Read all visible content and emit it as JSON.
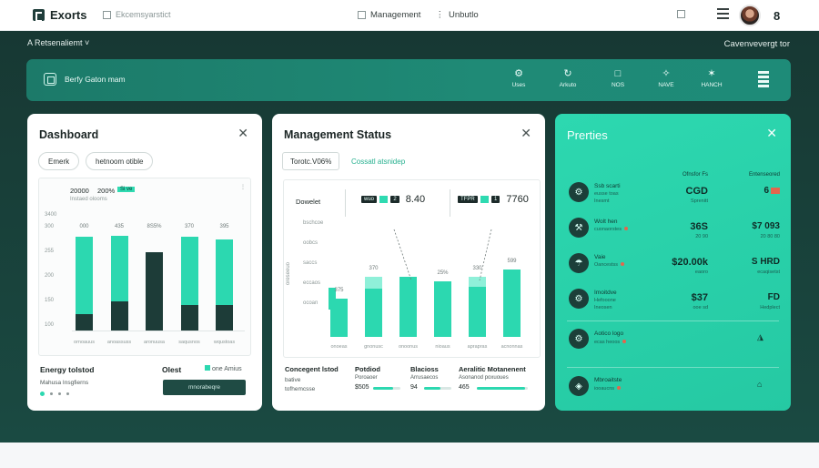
{
  "topbar": {
    "brand": "Exorts",
    "search": "Ekcemsyarstict",
    "nav": [
      "Management",
      "Unbutlo"
    ],
    "count": "8"
  },
  "crumb": {
    "left": "A Retsenaliemt",
    "right": "Cavenvevergt tor"
  },
  "header_bar": {
    "label": "Berfy Gaton mam",
    "items": [
      {
        "icon": "⚙",
        "label": "Uses"
      },
      {
        "icon": "↻",
        "label": "Arkuto"
      },
      {
        "icon": "□",
        "label": "NOS"
      },
      {
        "icon": "✧",
        "label": "NAVE"
      },
      {
        "icon": "✶",
        "label": "HANCH"
      }
    ]
  },
  "dashboard": {
    "title": "Dashboard",
    "chips": [
      "Emerk",
      "hetnoom otible"
    ],
    "legend_value": "20000",
    "legend_pct": "200%",
    "legend_tag": "Si ve",
    "legend_sub": "Instaed olooms",
    "y_top": "3400",
    "y_labels": [
      "300",
      "255",
      "200",
      "150",
      "100"
    ],
    "bar_values": [
      "000",
      "435",
      "8S5%",
      "370",
      "395"
    ],
    "bar_cats": [
      "ornoauus",
      "anoassuss",
      "aronuusa",
      "saqusnos",
      "wqustoas"
    ],
    "bars": [
      {
        "total": 0.86,
        "dark": 0.15
      },
      {
        "total": 0.87,
        "dark": 0.27
      },
      {
        "total": 0.72,
        "dark": 0.72
      },
      {
        "total": 0.86,
        "dark": 0.23
      },
      {
        "total": 0.83,
        "dark": 0.23
      }
    ],
    "footer_title": "Energy tolstod",
    "footer_sub": "Mahusa Insgfierns",
    "footer_right_title": "Olest",
    "footer_right_tag": "one Amius",
    "button": "mnorabeqre"
  },
  "management": {
    "title": "Management Status",
    "chips": [
      "Torotc.V06%",
      "Cossatl atsnidep"
    ],
    "sidebar_title": "Dowelet",
    "sidebar_items": [
      "bschcoe",
      "oobcs",
      "saccs",
      "eccaos",
      "ocoan"
    ],
    "y_axis": "oreseeuo",
    "tag1": {
      "dark": "wuo",
      "green": "",
      "num": "2",
      "big": "8.40"
    },
    "tag2": {
      "dark": "TFPR",
      "green": "",
      "num": "1",
      "big": "7760"
    },
    "bar_values": [
      "375",
      "370",
      "",
      "25%",
      "330",
      "599"
    ],
    "bar_cats": [
      "onoeas",
      "gnonusc",
      "onoonus",
      "nioaus",
      "aprapras",
      "acnonnas"
    ],
    "bars": [
      {
        "total": 0.52,
        "light": 0.0
      },
      {
        "total": 0.82,
        "light": 0.16
      },
      {
        "total": 0.82,
        "light": 0.0
      },
      {
        "total": 0.76,
        "light": 0.0
      },
      {
        "total": 0.82,
        "light": 0.13
      },
      {
        "total": 0.93,
        "light": 0.0
      }
    ],
    "footer": [
      {
        "title": "Concegent lstod",
        "line1": "bative",
        "line2": "tofhemcsse"
      },
      {
        "title": "Potdiod",
        "line1": "Poroaoer",
        "value": "$505",
        "progress": 0.72
      },
      {
        "title": "Blacioss",
        "line1": "Arrusaecos",
        "value": "94",
        "progress": 0.6
      },
      {
        "title": "Aeralitic Motanenent",
        "line1": "Asonanod poxuoues",
        "value": "465",
        "progress": 0.95
      }
    ]
  },
  "properties": {
    "title": "Prerties",
    "col_header_1": "Ofnsfor Fs",
    "col_header_2": "Entenseored",
    "rows": [
      {
        "icon": "○",
        "title": "Ssb scarti",
        "sub1": "eusse toas",
        "sub2": "Inesmt",
        "value": "CGD",
        "value_prefix": "",
        "v2": "6",
        "v2_hint": ""
      },
      {
        "icon": "○",
        "title": "Wolt hen",
        "sub1": "cuonaorstes",
        "sub2": "",
        "value": "36S",
        "value_prefix": "3",
        "v2": "$7 093",
        "v2_hint": "20 80 80"
      },
      {
        "icon": "○",
        "title": "Vaie",
        "sub1": "Oancestss",
        "sub2": "",
        "value": "$20.00k",
        "value_prefix": "",
        "v2": "S HRD",
        "v2_hint": "ecaqisetst"
      },
      {
        "icon": "○",
        "title": "Imoitdve",
        "sub1": "Hefooone",
        "sub2": "Ineosen",
        "value": "$37",
        "value_prefix": "",
        "v2": "FD",
        "v2_hint": "Hedplect"
      }
    ],
    "bottom": [
      {
        "title": "Aotico logo",
        "sub": "ecas heoos"
      },
      {
        "title": "Mbroaitste",
        "sub": "iooaucns"
      }
    ],
    "col1_subs": [
      "Sprenitt",
      "20 90",
      "eaoro",
      "ooe sd"
    ],
    "col2_subs": [
      "",
      "20 80 80",
      "ecaqisetst",
      "Hedplect"
    ]
  }
}
